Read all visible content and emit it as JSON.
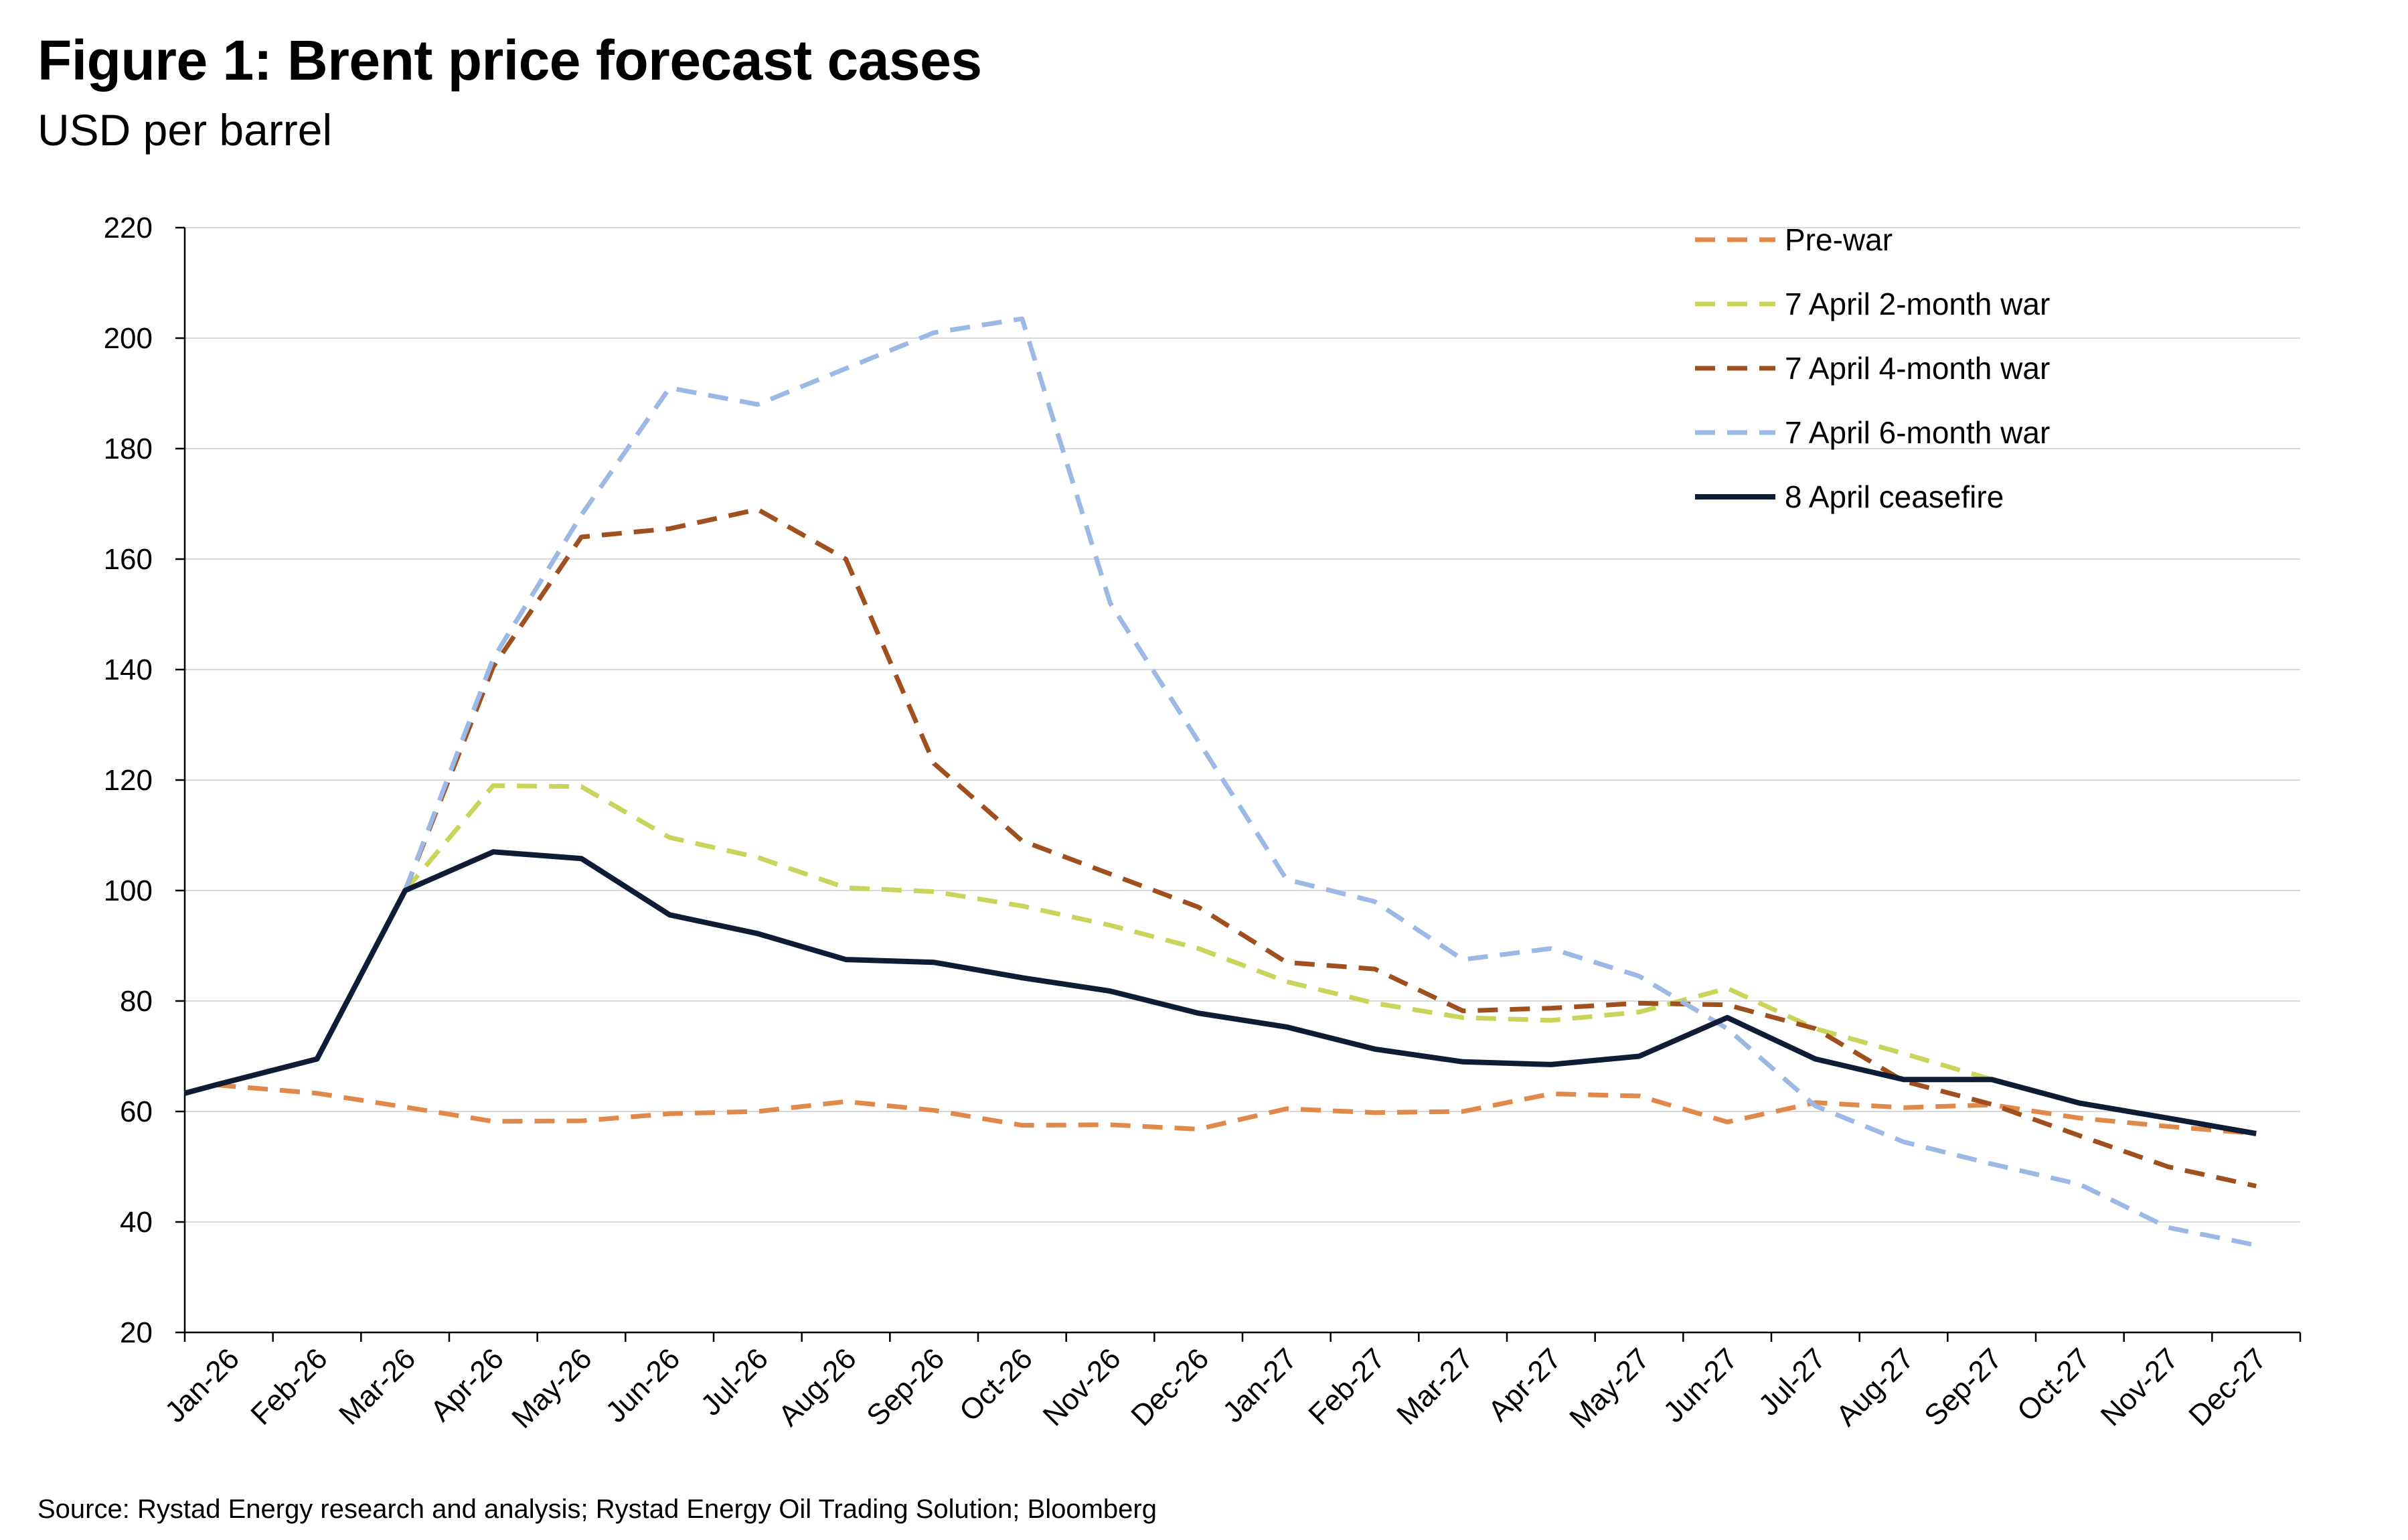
{
  "title": "Figure 1: Brent price forecast cases",
  "subtitle": "USD per barrel",
  "source": "Source: Rystad Energy research and analysis; Rystad Energy Oil Trading Solution; Bloomberg",
  "chart_data": {
    "type": "line",
    "title": "Figure 1: Brent price forecast cases",
    "subtitle": "USD per barrel",
    "xlabel": "",
    "ylabel": "",
    "ylim": [
      20,
      220
    ],
    "yticks": [
      20,
      40,
      60,
      80,
      100,
      120,
      140,
      160,
      180,
      200,
      220
    ],
    "grid": "horizontal",
    "legend_position": "top-right",
    "categories": [
      "Jan-26",
      "Feb-26",
      "Mar-26",
      "Apr-26",
      "May-26",
      "Jun-26",
      "Jul-26",
      "Aug-26",
      "Sep-26",
      "Oct-26",
      "Nov-26",
      "Dec-26",
      "Jan-27",
      "Feb-27",
      "Mar-27",
      "Apr-27",
      "May-27",
      "Jun-27",
      "Jul-27",
      "Aug-27",
      "Sep-27",
      "Oct-27",
      "Nov-27",
      "Dec-27"
    ],
    "x": [
      0,
      0.35,
      1.5,
      2.5,
      3.5,
      4.5,
      5.5,
      6.5,
      7.5,
      8.5,
      9.5,
      10.5,
      11.5,
      12.5,
      13.5,
      14.5,
      15.5,
      16.5,
      17.5,
      18.5,
      19.5,
      20.5,
      21.5,
      22.5,
      23.5
    ],
    "series": [
      {
        "name": "Pre-war",
        "color": "#E0894A",
        "dash": "dashed",
        "x": [
          0,
          0.35,
          1.5,
          2.5,
          3.5,
          4.5,
          5.5,
          6.5,
          7.5,
          8.5,
          9.5,
          10.5,
          11.5,
          12.5,
          13.5,
          14.5,
          15.5,
          16.5,
          17.5,
          18.5,
          19.5,
          20.5,
          21.5,
          22.5,
          23.5
        ],
        "values": [
          63.3,
          64.8,
          63.3,
          60.8,
          58.2,
          58.3,
          59.6,
          60.0,
          61.8,
          60.2,
          57.5,
          57.6,
          56.8,
          60.5,
          59.8,
          60.0,
          63.2,
          62.8,
          58.1,
          61.6,
          60.7,
          61.2,
          58.8,
          57.3,
          56.0
        ]
      },
      {
        "name": "7 April 2-month war",
        "color": "#C9D45A",
        "dash": "dashed",
        "x": [
          2.5,
          3.5,
          4.5,
          5.5,
          6.5,
          7.5,
          8.5,
          9.5,
          10.5,
          11.5,
          12.5,
          13.5,
          14.5,
          15.5,
          16.5,
          17.5,
          18.5,
          19.5,
          20.5
        ],
        "values": [
          100.0,
          119.0,
          118.8,
          109.6,
          106.0,
          100.5,
          99.8,
          97.2,
          93.7,
          89.5,
          83.5,
          79.6,
          77.0,
          76.5,
          78.0,
          82.3,
          75.0,
          70.5,
          65.8
        ]
      },
      {
        "name": "7 April 4-month war",
        "color": "#A0501E",
        "dash": "dashed",
        "x": [
          2.5,
          3.5,
          4.5,
          5.5,
          6.5,
          7.5,
          8.5,
          9.5,
          10.5,
          11.5,
          12.5,
          13.5,
          14.5,
          15.5,
          16.5,
          17.5,
          18.5,
          19.5,
          20.5,
          21.5,
          22.5,
          23.5
        ],
        "values": [
          100.0,
          140.5,
          164.0,
          165.5,
          169.0,
          160.0,
          123.0,
          109.0,
          103.0,
          97.0,
          87.0,
          85.8,
          78.2,
          78.7,
          79.6,
          79.3,
          75.0,
          65.5,
          61.3,
          55.6,
          50.0,
          46.5
        ]
      },
      {
        "name": "7 April 6-month war",
        "color": "#9CB9E6",
        "dash": "dashed",
        "x": [
          2.5,
          3.5,
          4.5,
          5.5,
          6.5,
          7.5,
          8.5,
          9.5,
          10.5,
          11.5,
          12.5,
          13.5,
          14.5,
          15.5,
          16.5,
          17.5,
          18.5,
          19.5,
          20.5,
          21.5,
          22.5,
          23.5
        ],
        "values": [
          100.0,
          142.0,
          168.0,
          191.0,
          188.0,
          194.5,
          201.0,
          203.5,
          152.0,
          127.0,
          102.0,
          98.0,
          87.5,
          89.5,
          84.5,
          75.0,
          61.0,
          54.5,
          50.5,
          46.8,
          39.0,
          35.8
        ]
      },
      {
        "name": "8 April ceasefire",
        "color": "#0E1C36",
        "dash": "solid",
        "x": [
          0,
          0.35,
          1.5,
          2.5,
          3.5,
          4.5,
          5.5,
          6.5,
          7.5,
          8.5,
          9.5,
          10.5,
          11.5,
          12.5,
          13.5,
          14.5,
          15.5,
          16.5,
          17.5,
          18.5,
          19.5,
          20.5,
          21.5,
          22.5,
          23.5
        ],
        "values": [
          63.3,
          64.8,
          69.5,
          100.0,
          107.0,
          105.8,
          95.6,
          92.2,
          87.5,
          87.0,
          84.2,
          81.8,
          77.8,
          75.3,
          71.3,
          69.0,
          68.5,
          70.0,
          77.0,
          69.5,
          65.8,
          65.8,
          61.5,
          58.8,
          56.0
        ]
      }
    ]
  }
}
